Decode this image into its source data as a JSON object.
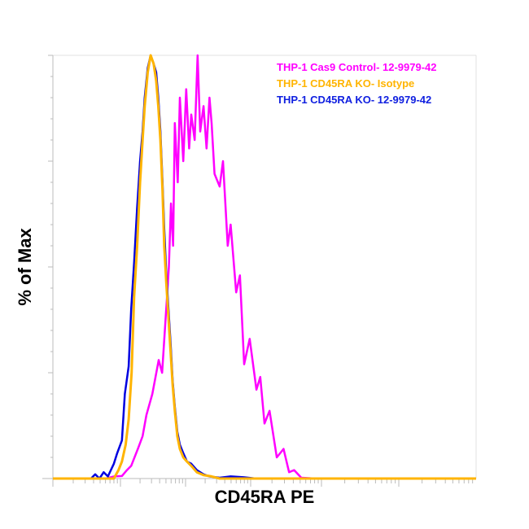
{
  "chart_data": {
    "type": "line",
    "title": "",
    "xlabel": "CD45RA PE",
    "ylabel": "% of Max",
    "x_scale": "log",
    "xlim": [
      0,
      100
    ],
    "ylim": [
      0,
      100
    ],
    "grid": false,
    "legend_position": "top-right",
    "series": [
      {
        "name": "THP-1 Cas9 Control- 12-9979-42",
        "color": "#ff00ff",
        "x": [
          0,
          12.5,
          14.5,
          16.3,
          17.5,
          18.5,
          20.2,
          21.2,
          22.1,
          23.5,
          25,
          25.8,
          26.9,
          27.4,
          27.9,
          28.4,
          28.8,
          29.5,
          30,
          30.8,
          31.5,
          32.2,
          32.7,
          33.5,
          34.2,
          34.8,
          35.6,
          36.3,
          37,
          37.5,
          38.2,
          39.4,
          40.2,
          41.3,
          42,
          43.3,
          44.2,
          45.2,
          46.5,
          48.1,
          49,
          50,
          51.2,
          52.9,
          54.5,
          55.8,
          57,
          58.7,
          62,
          100
        ],
        "y": [
          0,
          0,
          0.5,
          0.6,
          2,
          3,
          7.3,
          10,
          15,
          20,
          28,
          25,
          42,
          50,
          65,
          55,
          84,
          70,
          90,
          75,
          92,
          78,
          86,
          80,
          100,
          82,
          88,
          78,
          90,
          84,
          72,
          69,
          75,
          55,
          60,
          44,
          48,
          27,
          33,
          21,
          24,
          13,
          16,
          5,
          7,
          1.5,
          2,
          0.2,
          0,
          0
        ]
      },
      {
        "name": "THP-1 CD45RA KO- Isotype",
        "color": "#ffb400",
        "x": [
          0,
          14.4,
          15.5,
          16.3,
          17.2,
          17.9,
          18.6,
          19.2,
          19.9,
          20.6,
          21.2,
          21.7,
          22.4,
          23.1,
          23.8,
          24.4,
          24.9,
          25.4,
          25.9,
          26.3,
          26.8,
          27.3,
          27.8,
          28.3,
          28.8,
          29.4,
          30,
          30.8,
          31.7,
          32.7,
          34,
          35.6,
          37.5,
          39.4,
          100
        ],
        "y": [
          0,
          0,
          2,
          4,
          8,
          14,
          25,
          43,
          55,
          70,
          80,
          88,
          96,
          100,
          98,
          94,
          88,
          80,
          68,
          55,
          46,
          38,
          30,
          22,
          16,
          10,
          7,
          5,
          4,
          3,
          1.5,
          0.8,
          0.5,
          0,
          0
        ]
      },
      {
        "name": "THP-1 CD45RA KO- 12-9979-42",
        "color": "#0000e0",
        "x": [
          0,
          9,
          10,
          11,
          12,
          13,
          14.4,
          15.2,
          16.3,
          17,
          17.9,
          18.5,
          19.2,
          19.9,
          20.6,
          21.2,
          21.7,
          22.4,
          23.1,
          23.8,
          24.4,
          24.9,
          25.4,
          25.9,
          26.3,
          26.8,
          27.3,
          27.8,
          28.3,
          28.8,
          29.4,
          30,
          30.8,
          31.7,
          32.7,
          34,
          35.6,
          37,
          39.4,
          42,
          45,
          48,
          100
        ],
        "y": [
          0,
          0,
          1,
          0,
          1.5,
          0.5,
          3.5,
          6,
          9,
          20,
          26.5,
          40,
          51,
          64,
          75,
          82,
          90,
          97,
          100,
          98,
          96,
          90,
          82,
          70,
          59,
          48,
          40,
          32,
          23,
          17,
          11,
          8,
          6,
          4,
          3.5,
          2,
          1,
          0.5,
          0.2,
          0.5,
          0.3,
          0,
          0
        ]
      }
    ]
  }
}
